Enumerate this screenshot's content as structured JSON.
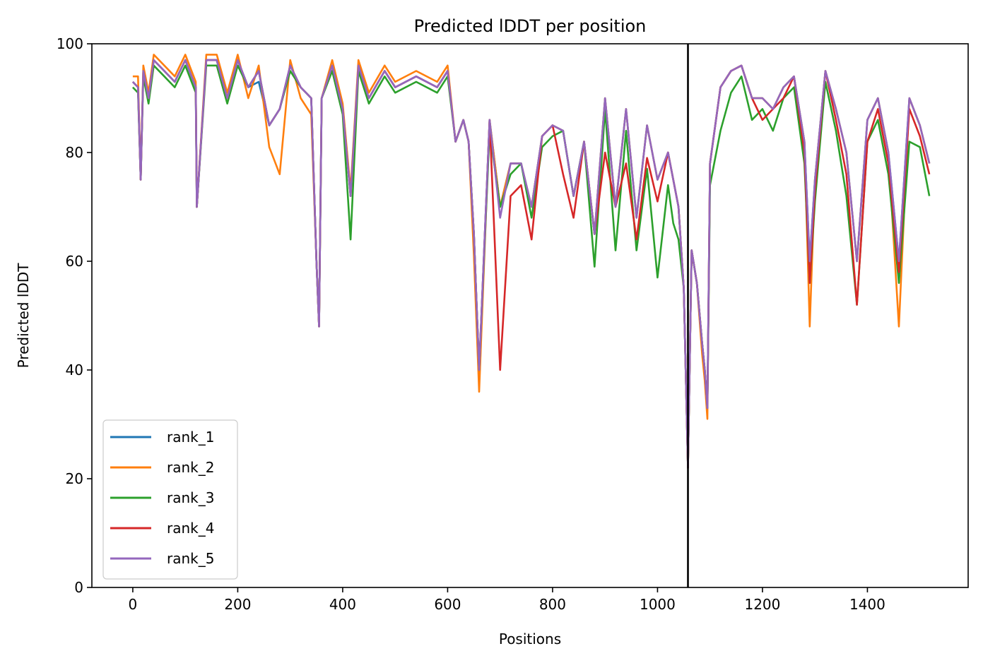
{
  "chart_data": {
    "type": "line",
    "title": "Predicted lDDT per position",
    "xlabel": "Positions",
    "ylabel": "Predicted lDDT",
    "xlim": [
      -78,
      1592
    ],
    "ylim": [
      0,
      100
    ],
    "xticks": [
      0,
      200,
      400,
      600,
      800,
      1000,
      1200,
      1400
    ],
    "yticks": [
      0,
      20,
      40,
      60,
      80,
      100
    ],
    "vline_x": 1058,
    "legend_position": "lower-left",
    "grid": false,
    "series": [
      {
        "name": "rank_1",
        "color": "#1f77b4"
      },
      {
        "name": "rank_2",
        "color": "#ff7f0e"
      },
      {
        "name": "rank_3",
        "color": "#2ca02c"
      },
      {
        "name": "rank_4",
        "color": "#d62728"
      },
      {
        "name": "rank_5",
        "color": "#9467bd"
      }
    ],
    "x": [
      0,
      10,
      15,
      20,
      30,
      40,
      60,
      80,
      100,
      120,
      122,
      140,
      160,
      180,
      200,
      220,
      240,
      260,
      280,
      300,
      320,
      340,
      350,
      355,
      360,
      380,
      400,
      415,
      430,
      450,
      480,
      500,
      540,
      580,
      600,
      615,
      630,
      640,
      650,
      660,
      680,
      700,
      720,
      740,
      760,
      780,
      800,
      820,
      840,
      860,
      880,
      900,
      920,
      940,
      960,
      980,
      1000,
      1020,
      1030,
      1040,
      1050,
      1058,
      1065,
      1075,
      1085,
      1090,
      1095,
      1100,
      1120,
      1140,
      1160,
      1180,
      1200,
      1220,
      1240,
      1260,
      1280,
      1290,
      1300,
      1320,
      1340,
      1360,
      1380,
      1400,
      1420,
      1440,
      1460,
      1480,
      1500,
      1518
    ],
    "y_base": [
      93,
      92,
      75,
      95,
      90,
      97,
      95,
      93,
      97,
      92,
      70,
      97,
      97,
      90,
      97,
      92,
      95,
      85,
      88,
      96,
      92,
      90,
      60,
      48,
      90,
      96,
      88,
      72,
      96,
      90,
      95,
      92,
      94,
      92,
      95,
      82,
      86,
      82,
      65,
      40,
      86,
      70,
      78,
      78,
      70,
      83,
      85,
      84,
      72,
      82,
      65,
      90,
      70,
      88,
      68,
      85,
      75,
      80,
      75,
      70,
      55,
      22,
      62,
      56,
      45,
      40,
      33,
      78,
      92,
      95,
      96,
      90,
      90,
      88,
      92,
      94,
      82,
      60,
      75,
      95,
      88,
      80,
      60,
      86,
      90,
      80,
      60,
      90,
      85,
      78
    ],
    "offsets": [
      [
        0,
        0,
        0,
        0,
        0,
        0,
        0,
        0,
        0,
        0,
        0,
        0,
        0,
        0,
        0,
        0,
        -2,
        0,
        0,
        0,
        0,
        0,
        0,
        0,
        0,
        0,
        0,
        0,
        0,
        0,
        0,
        0,
        0,
        0,
        0,
        0,
        0,
        0,
        0,
        0,
        0,
        0,
        0,
        0,
        0,
        0,
        0,
        0,
        0,
        0,
        0,
        0,
        0,
        0,
        0,
        0,
        0,
        0,
        0,
        0,
        0,
        0,
        0,
        0,
        0,
        0,
        0,
        0,
        0,
        0,
        0,
        0,
        0,
        0,
        0,
        0,
        0,
        0,
        0,
        0,
        0,
        0,
        0,
        0,
        0,
        0,
        0,
        0,
        0,
        0
      ],
      [
        1,
        2,
        0,
        1,
        1,
        1,
        1,
        1,
        1,
        1,
        0,
        1,
        1,
        1,
        1,
        -2,
        1,
        -4,
        -12,
        1,
        -2,
        -3,
        0,
        0,
        0,
        1,
        1,
        1,
        1,
        1,
        1,
        1,
        1,
        1,
        1,
        0,
        0,
        0,
        -4,
        -4,
        0,
        0,
        0,
        0,
        0,
        0,
        0,
        0,
        0,
        0,
        0,
        0,
        0,
        0,
        0,
        0,
        0,
        0,
        0,
        0,
        0,
        0,
        0,
        0,
        -2,
        -2,
        -2,
        0,
        0,
        0,
        0,
        0,
        0,
        0,
        0,
        0,
        0,
        -12,
        0,
        0,
        0,
        0,
        0,
        0,
        0,
        0,
        -12,
        0,
        0,
        0
      ],
      [
        -1,
        -1,
        0,
        -1,
        -1,
        -1,
        -1,
        -1,
        -1,
        -1,
        0,
        -1,
        -1,
        -1,
        -1,
        0,
        0,
        0,
        0,
        -1,
        0,
        0,
        0,
        0,
        0,
        -1,
        -1,
        -8,
        -1,
        -1,
        -1,
        -1,
        -1,
        -1,
        -1,
        0,
        0,
        0,
        0,
        0,
        -2,
        0,
        -2,
        0,
        -2,
        -2,
        -2,
        0,
        0,
        0,
        -6,
        -2,
        -8,
        -4,
        -6,
        -8,
        -18,
        -6,
        -8,
        -6,
        0,
        0,
        0,
        0,
        0,
        0,
        0,
        -4,
        -8,
        -4,
        -2,
        -4,
        -2,
        -4,
        -2,
        -2,
        -4,
        -4,
        -4,
        -2,
        -4,
        -8,
        -8,
        -4,
        -4,
        -4,
        -4,
        -8,
        -4,
        -6
      ],
      [
        0,
        0,
        0,
        0,
        0,
        0,
        0,
        0,
        0,
        0,
        0,
        0,
        0,
        0,
        0,
        0,
        0,
        0,
        0,
        0,
        0,
        0,
        0,
        0,
        0,
        0,
        0,
        0,
        0,
        0,
        0,
        0,
        0,
        0,
        0,
        0,
        0,
        0,
        0,
        0,
        0,
        -30,
        -6,
        -4,
        -6,
        0,
        0,
        -8,
        -4,
        0,
        0,
        -10,
        0,
        -10,
        -4,
        -6,
        -4,
        0,
        0,
        0,
        0,
        0,
        0,
        0,
        0,
        0,
        0,
        0,
        0,
        0,
        0,
        0,
        -4,
        0,
        -2,
        0,
        -2,
        -4,
        -2,
        0,
        -2,
        -4,
        -8,
        -4,
        -2,
        -2,
        -2,
        -2,
        -2,
        -2
      ],
      [
        0,
        0,
        0,
        0,
        0,
        0,
        0,
        0,
        0,
        0,
        0,
        0,
        0,
        0,
        0,
        0,
        0,
        0,
        0,
        0,
        0,
        0,
        0,
        0,
        0,
        0,
        0,
        0,
        0,
        0,
        0,
        0,
        0,
        0,
        0,
        0,
        0,
        0,
        0,
        0,
        0,
        -2,
        0,
        0,
        0,
        0,
        0,
        0,
        0,
        0,
        0,
        0,
        0,
        0,
        0,
        0,
        0,
        0,
        0,
        0,
        0,
        0,
        0,
        0,
        0,
        0,
        0,
        0,
        0,
        0,
        0,
        0,
        0,
        0,
        0,
        0,
        0,
        0,
        0,
        0,
        0,
        0,
        0,
        0,
        0,
        0,
        0,
        0,
        0,
        0
      ]
    ]
  }
}
